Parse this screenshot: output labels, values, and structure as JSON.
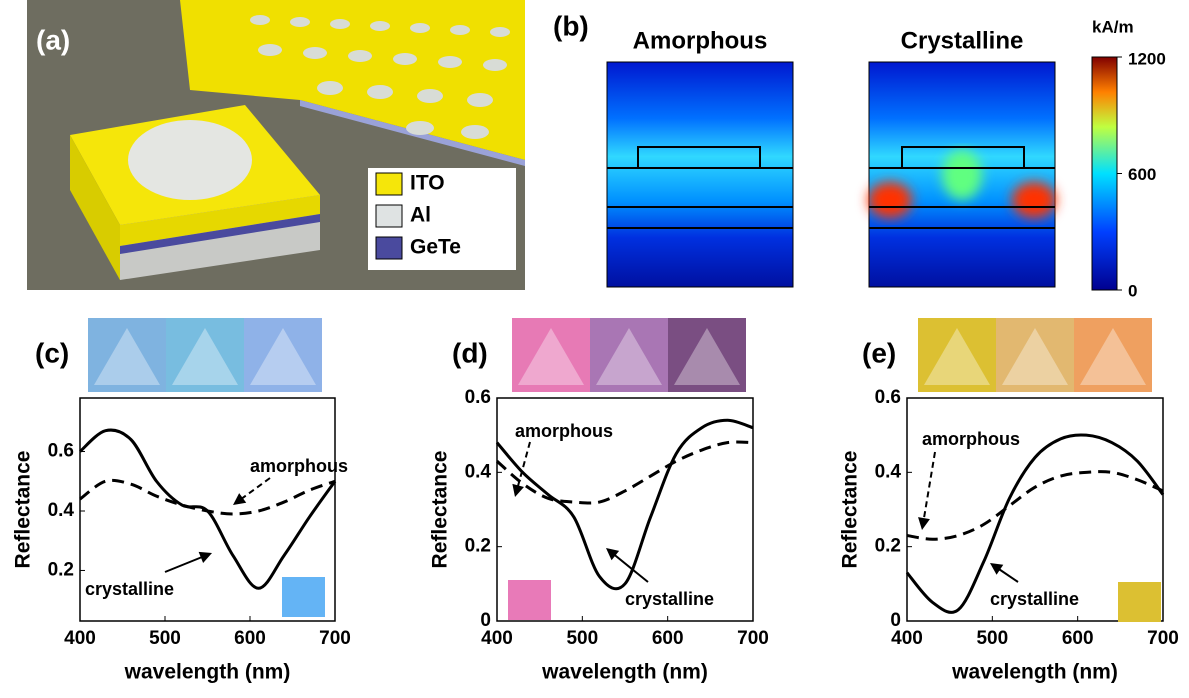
{
  "panel_a": {
    "label": "(a)",
    "legend": [
      {
        "name": "ITO",
        "color": "#f5e60a"
      },
      {
        "name": "Al",
        "color": "#dfe3e3"
      },
      {
        "name": "GeTe",
        "color": "#4a4a9e"
      }
    ]
  },
  "panel_b": {
    "label": "(b)",
    "maps": [
      "Amorphous",
      "Crystalline"
    ],
    "colorbar": {
      "label": "kA/m",
      "lim": [
        0,
        1200
      ],
      "ticks": [
        0,
        600,
        1200
      ]
    }
  },
  "chart_data": [
    {
      "type": "line",
      "panel": "(c)",
      "xlabel": "wavelength (nm)",
      "ylabel": "Reflectance",
      "x": [
        400,
        430,
        460,
        490,
        520,
        550,
        580,
        610,
        640,
        670,
        700
      ],
      "xlim": [
        400,
        700
      ],
      "xticks": [
        400,
        500,
        600,
        700
      ],
      "ylim": [
        0.03,
        0.78
      ],
      "yticks": [
        0.2,
        0.4,
        0.6
      ],
      "swatch": "#64b4f5",
      "strip": [
        "#7fb3e0",
        "#78bde0",
        "#8fb2e8"
      ],
      "series": [
        {
          "name": "crystalline",
          "color": "#000000",
          "dashed": false,
          "values": [
            0.6,
            0.67,
            0.64,
            0.5,
            0.42,
            0.4,
            0.25,
            0.14,
            0.25,
            0.38,
            0.5
          ]
        },
        {
          "name": "amorphous",
          "color": "#000000",
          "dashed": true,
          "values": [
            0.44,
            0.5,
            0.49,
            0.45,
            0.42,
            0.4,
            0.39,
            0.4,
            0.43,
            0.47,
            0.5
          ]
        }
      ]
    },
    {
      "type": "line",
      "panel": "(d)",
      "xlabel": "wavelength (nm)",
      "ylabel": "Reflectance",
      "x": [
        400,
        430,
        460,
        490,
        520,
        550,
        580,
        610,
        640,
        670,
        700
      ],
      "xlim": [
        400,
        700
      ],
      "xticks": [
        400,
        500,
        600,
        700
      ],
      "ylim": [
        0,
        0.6
      ],
      "yticks": [
        0,
        0.2,
        0.4,
        0.6
      ],
      "swatch": "#e87ab8",
      "strip": [
        "#e77ab5",
        "#a976b4",
        "#7a4e82"
      ],
      "series": [
        {
          "name": "crystalline",
          "color": "#000000",
          "dashed": false,
          "values": [
            0.48,
            0.4,
            0.34,
            0.28,
            0.12,
            0.1,
            0.28,
            0.45,
            0.52,
            0.54,
            0.52
          ]
        },
        {
          "name": "amorphous",
          "color": "#000000",
          "dashed": true,
          "values": [
            0.43,
            0.37,
            0.33,
            0.32,
            0.32,
            0.35,
            0.39,
            0.43,
            0.46,
            0.48,
            0.48
          ]
        }
      ]
    },
    {
      "type": "line",
      "panel": "(e)",
      "xlabel": "wavelength (nm)",
      "ylabel": "Reflectance",
      "x": [
        400,
        430,
        460,
        490,
        520,
        550,
        580,
        610,
        640,
        670,
        700
      ],
      "xlim": [
        400,
        700
      ],
      "xticks": [
        400,
        500,
        600,
        700
      ],
      "ylim": [
        0,
        0.6
      ],
      "yticks": [
        0,
        0.2,
        0.4,
        0.6
      ],
      "swatch": "#dcc032",
      "strip": [
        "#dcc032",
        "#e2b870",
        "#efa060"
      ],
      "series": [
        {
          "name": "crystalline",
          "color": "#000000",
          "dashed": false,
          "values": [
            0.13,
            0.05,
            0.03,
            0.16,
            0.33,
            0.44,
            0.49,
            0.5,
            0.48,
            0.43,
            0.34
          ]
        },
        {
          "name": "amorphous",
          "color": "#000000",
          "dashed": true,
          "values": [
            0.23,
            0.22,
            0.23,
            0.26,
            0.31,
            0.36,
            0.39,
            0.4,
            0.4,
            0.38,
            0.35
          ]
        }
      ]
    }
  ]
}
